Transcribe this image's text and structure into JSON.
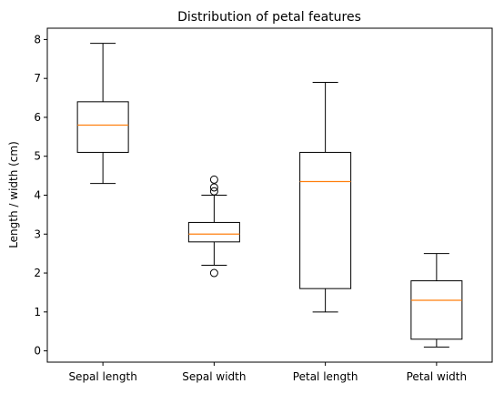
{
  "chart_data": {
    "type": "box",
    "title": "Distribution of petal features",
    "xlabel": "",
    "ylabel": "Length / width (cm)",
    "ylim": [
      -0.29,
      8.29
    ],
    "yticks": [
      "0",
      "1",
      "2",
      "3",
      "4",
      "5",
      "6",
      "7",
      "8"
    ],
    "categories": [
      "Sepal length",
      "Sepal width",
      "Petal length",
      "Petal width"
    ],
    "boxes": [
      {
        "min": 4.3,
        "q1": 5.1,
        "median": 5.8,
        "q3": 6.4,
        "max": 7.9,
        "outliers": []
      },
      {
        "min": 2.2,
        "q1": 2.8,
        "median": 3.0,
        "q3": 3.3,
        "max": 4.0,
        "outliers": [
          4.4,
          4.2,
          4.1,
          2.0
        ]
      },
      {
        "min": 1.0,
        "q1": 1.6,
        "median": 4.35,
        "q3": 5.1,
        "max": 6.9,
        "outliers": []
      },
      {
        "min": 0.1,
        "q1": 0.3,
        "median": 1.3,
        "q3": 1.8,
        "max": 2.5,
        "outliers": []
      }
    ],
    "colors": {
      "box": "#000000",
      "median": "#ff7f0e"
    },
    "grid": false
  }
}
